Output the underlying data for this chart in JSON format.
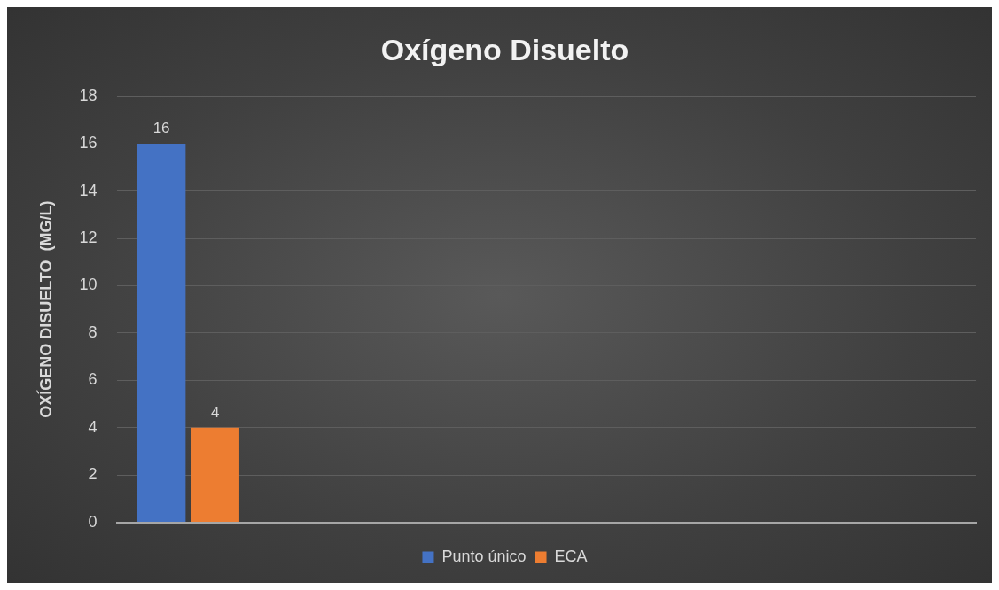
{
  "chart_data": {
    "type": "bar",
    "title": "Oxígeno Disuelto",
    "ylabel": "OXÍGENO DISUELTO  (MG/L)",
    "categories": [
      null,
      null,
      null,
      null,
      null,
      null
    ],
    "series": [
      {
        "name": "Punto único",
        "color": "#4472c4",
        "values": [
          16,
          null,
          null,
          null,
          null,
          null
        ]
      },
      {
        "name": "ECA",
        "color": "#ed7d31",
        "values": [
          4,
          null,
          null,
          null,
          null,
          null
        ]
      }
    ],
    "ylim": [
      0,
      18
    ],
    "yticks": [
      0,
      2,
      4,
      6,
      8,
      10,
      12,
      14,
      16,
      18
    ],
    "grid": "y",
    "legend": "bottom",
    "data_labels": true
  }
}
